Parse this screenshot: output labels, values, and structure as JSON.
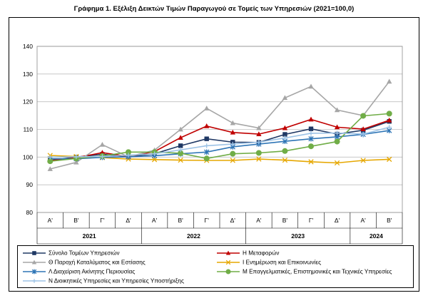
{
  "title": "Γράφημα 1. Εξέλιξη Δεικτών Τιμών Παραγωγού σε Τομείς των Υπηρεσιών (2021=100,0)",
  "chart_data": {
    "type": "line",
    "ylim": [
      80,
      140
    ],
    "yticks": [
      80,
      90,
      100,
      110,
      120,
      130,
      140
    ],
    "grid": true,
    "legend_position": "bottom",
    "quarters": [
      "Α'",
      "Β'",
      "Γ'",
      "Δ'",
      "Α'",
      "Β'",
      "Γ'",
      "Δ'",
      "Α'",
      "Β'",
      "Γ'",
      "Δ'",
      "Α'",
      "Β'"
    ],
    "years": [
      {
        "label": "2021",
        "span": 4
      },
      {
        "label": "2022",
        "span": 4
      },
      {
        "label": "2023",
        "span": 4
      },
      {
        "label": "2024",
        "span": 2
      }
    ],
    "series": [
      {
        "name": "Σύνολο Τομέων Υπηρεσιών",
        "color": "#1f3864",
        "marker": "square",
        "values": [
          98.8,
          100.0,
          101.0,
          100.2,
          101.2,
          104.1,
          106.6,
          105.4,
          105.3,
          108.2,
          110.2,
          108.3,
          109.7,
          112.9
        ]
      },
      {
        "name": "Η Μεταφορών",
        "color": "#c00000",
        "marker": "triangle",
        "values": [
          98.7,
          99.8,
          101.6,
          100.2,
          102.0,
          107.0,
          111.2,
          108.9,
          108.3,
          110.5,
          113.6,
          110.8,
          110.1,
          113.3
        ]
      },
      {
        "name": "Θ Παροχή Καταλύματος και Εστίασης",
        "color": "#a6a6a6",
        "marker": "triangle",
        "values": [
          95.7,
          98.1,
          104.5,
          100.1,
          102.5,
          110.0,
          117.6,
          112.3,
          110.5,
          121.4,
          125.5,
          117.0,
          115.0,
          127.3
        ]
      },
      {
        "name": "Ι Ενημέρωση και Επικοινωνίες",
        "color": "#e6a700",
        "marker": "cross",
        "values": [
          100.6,
          100.2,
          99.8,
          99.3,
          99.1,
          98.9,
          98.8,
          98.8,
          99.3,
          98.9,
          98.3,
          97.9,
          98.8,
          99.2
        ]
      },
      {
        "name": "Λ Διαχείριση Ακίνητης Περιουσίας",
        "color": "#2e75b6",
        "marker": "star",
        "values": [
          99.4,
          99.4,
          99.9,
          100.1,
          100.5,
          101.2,
          101.8,
          103.7,
          104.7,
          105.7,
          106.6,
          107.3,
          108.2,
          109.6
        ]
      },
      {
        "name": "Μ Επαγγελματικές, Επιστημονικές και Τεχνικές Υπηρεσίες",
        "color": "#70ad47",
        "marker": "circle",
        "values": [
          98.5,
          99.5,
          100.4,
          101.8,
          101.8,
          101.4,
          99.5,
          101.2,
          101.5,
          102.2,
          103.9,
          105.6,
          114.9,
          115.7
        ]
      },
      {
        "name": "Ν Διοικητικές Υπηρεσίες και Υπηρεσίες Υποστήριξης",
        "color": "#9dc3e6",
        "marker": "plus",
        "values": [
          100.0,
          100.1,
          100.2,
          100.7,
          101.2,
          102.6,
          104.1,
          104.7,
          105.4,
          106.9,
          108.6,
          108.7,
          108.3,
          110.8
        ]
      }
    ]
  }
}
